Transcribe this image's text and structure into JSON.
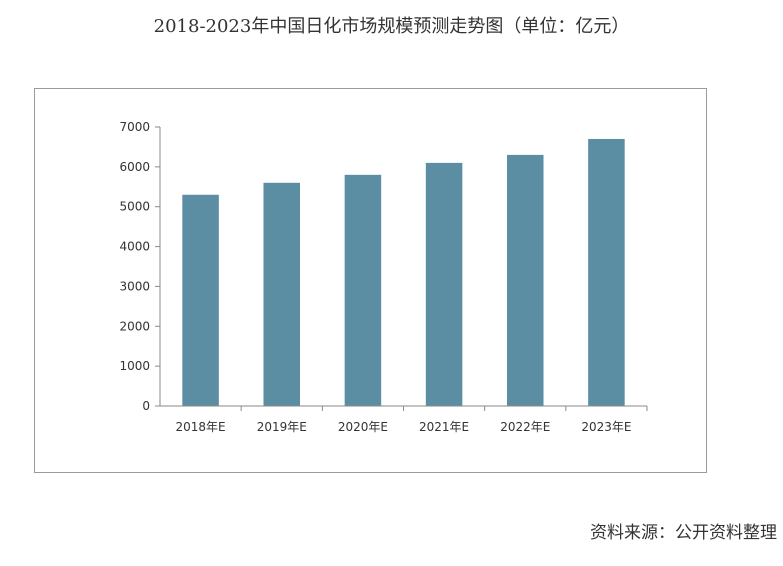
{
  "title": "2018-2023年中国日化市场规模预测走势图（单位：亿元）",
  "source": "资料来源：公开资料整理",
  "colors": {
    "bar": "#5b8ea3",
    "axis": "#8a8a8a",
    "frame": "#9a9a9a"
  },
  "chart_data": {
    "type": "bar",
    "title": "2018-2023年中国日化市场规模预测走势图（单位：亿元）",
    "categories": [
      "2018年E",
      "2019年E",
      "2020年E",
      "2021年E",
      "2022年E",
      "2023年E"
    ],
    "values": [
      5300,
      5600,
      5800,
      6100,
      6300,
      6700
    ],
    "ylim": [
      0,
      7000
    ],
    "yticks": [
      0,
      1000,
      2000,
      3000,
      4000,
      5000,
      6000,
      7000
    ],
    "xlabel": "",
    "ylabel": "",
    "grid": false,
    "legend": "none"
  }
}
